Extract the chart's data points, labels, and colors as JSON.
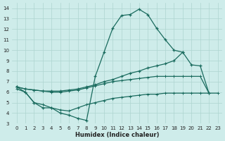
{
  "xlabel": "Humidex (Indice chaleur)",
  "bg_color": "#ceecea",
  "grid_color": "#add4d0",
  "line_color": "#1a6b5e",
  "xlim": [
    -0.5,
    23.5
  ],
  "ylim": [
    3,
    14.5
  ],
  "xticks": [
    0,
    1,
    2,
    3,
    4,
    5,
    6,
    7,
    8,
    9,
    10,
    11,
    12,
    13,
    14,
    15,
    16,
    17,
    18,
    19,
    20,
    21,
    22,
    23
  ],
  "yticks": [
    3,
    4,
    5,
    6,
    7,
    8,
    9,
    10,
    11,
    12,
    13,
    14
  ],
  "curve1_x": [
    0,
    1,
    2,
    3,
    4,
    5,
    6,
    7,
    8,
    9,
    10,
    11,
    12,
    13,
    14,
    15,
    16,
    17,
    18,
    19
  ],
  "curve1_y": [
    6.5,
    6.0,
    5.0,
    4.5,
    4.5,
    4.0,
    3.8,
    3.5,
    3.3,
    7.5,
    9.8,
    12.1,
    13.3,
    13.4,
    13.9,
    13.4,
    12.1,
    11.0,
    10.0,
    9.8
  ],
  "curve2_x": [
    0,
    1,
    2,
    3,
    4,
    5,
    6,
    7,
    8,
    9,
    10,
    11,
    12,
    13,
    14,
    15,
    16,
    17,
    18,
    19,
    20,
    21,
    22
  ],
  "curve2_y": [
    6.5,
    6.3,
    6.2,
    6.1,
    6.1,
    6.1,
    6.2,
    6.3,
    6.5,
    6.7,
    7.0,
    7.2,
    7.5,
    7.8,
    8.0,
    8.3,
    8.5,
    8.7,
    9.0,
    9.8,
    8.6,
    8.5,
    5.9
  ],
  "curve3_x": [
    0,
    1,
    2,
    3,
    4,
    5,
    6,
    7,
    8,
    9,
    10,
    11,
    12,
    13,
    14,
    15,
    16,
    17,
    18,
    19,
    20,
    21,
    22,
    23
  ],
  "curve3_y": [
    6.3,
    6.0,
    5.0,
    4.8,
    4.5,
    4.3,
    4.2,
    4.5,
    4.8,
    5.0,
    5.2,
    5.4,
    5.5,
    5.6,
    5.7,
    5.8,
    5.8,
    5.9,
    5.9,
    5.9,
    5.9,
    5.9,
    5.9,
    5.9
  ],
  "curve4_x": [
    0,
    1,
    2,
    3,
    4,
    5,
    6,
    7,
    8,
    9,
    10,
    11,
    12,
    13,
    14,
    15,
    16,
    17,
    18,
    19,
    20,
    21,
    22,
    23
  ],
  "curve4_y": [
    6.5,
    6.3,
    6.2,
    6.1,
    6.0,
    6.0,
    6.1,
    6.2,
    6.4,
    6.6,
    6.8,
    7.0,
    7.1,
    7.2,
    7.3,
    7.4,
    7.5,
    7.5,
    7.5,
    7.5,
    7.5,
    7.5,
    5.9,
    null
  ]
}
